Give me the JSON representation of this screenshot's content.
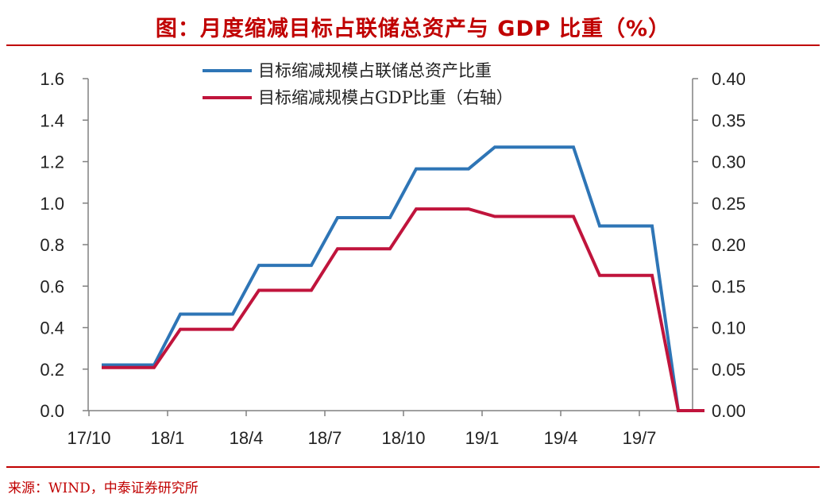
{
  "header": {
    "title": "图：月度缩减目标占联储总资产与 GDP 比重（%）"
  },
  "footer": {
    "source": "来源：WIND，中泰证券研究所"
  },
  "colors": {
    "accent": "#c00000",
    "series_assets": "#2e75b6",
    "series_gdp": "#c0143c",
    "axis": "#808080"
  },
  "chart_data": {
    "type": "line",
    "title": "图：月度缩减目标占联储总资产与 GDP 比重（%）",
    "x": [
      "2017-10",
      "2017-11",
      "2017-12",
      "2018-01",
      "2018-02",
      "2018-03",
      "2018-04",
      "2018-05",
      "2018-06",
      "2018-07",
      "2018-08",
      "2018-09",
      "2018-10",
      "2018-11",
      "2018-12",
      "2019-01",
      "2019-02",
      "2019-03",
      "2019-04",
      "2019-05",
      "2019-06",
      "2019-07",
      "2019-08",
      "2019-09"
    ],
    "x_tick_labels": [
      "17/10",
      "18/1",
      "18/4",
      "18/7",
      "18/10",
      "19/1",
      "19/4",
      "19/7"
    ],
    "x_tick_indices": [
      0,
      3,
      6,
      9,
      12,
      15,
      18,
      21
    ],
    "series": [
      {
        "name": "目标缩减规模占联储总资产比重",
        "axis": "left",
        "values": [
          0.22,
          0.22,
          0.22,
          0.465,
          0.465,
          0.465,
          0.7,
          0.7,
          0.7,
          0.93,
          0.93,
          0.93,
          1.165,
          1.165,
          1.165,
          1.27,
          1.27,
          1.27,
          1.27,
          0.89,
          0.89,
          0.89,
          0.0,
          0.0
        ]
      },
      {
        "name": "目标缩减规模占GDP比重（右轴）",
        "axis": "right",
        "values": [
          0.052,
          0.052,
          0.052,
          0.098,
          0.098,
          0.098,
          0.145,
          0.145,
          0.145,
          0.195,
          0.195,
          0.195,
          0.243,
          0.243,
          0.243,
          0.234,
          0.234,
          0.234,
          0.234,
          0.163,
          0.163,
          0.163,
          0.0,
          0.0
        ]
      }
    ],
    "ylim_left": [
      0,
      1.6
    ],
    "ylim_right": [
      0,
      0.4
    ],
    "yticks_left": [
      "0.0",
      "0.2",
      "0.4",
      "0.6",
      "0.8",
      "1.0",
      "1.2",
      "1.4",
      "1.6"
    ],
    "yticks_right": [
      "0.00",
      "0.05",
      "0.10",
      "0.15",
      "0.20",
      "0.25",
      "0.30",
      "0.35",
      "0.40"
    ],
    "legend_position": "top-center",
    "grid": false
  }
}
